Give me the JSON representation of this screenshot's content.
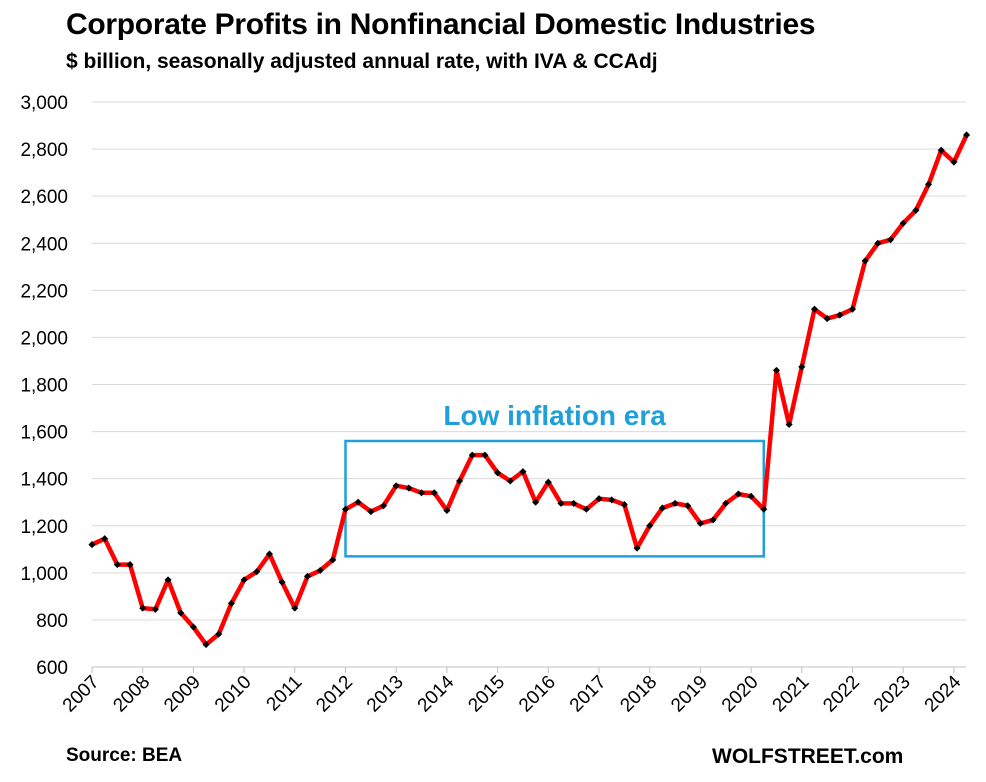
{
  "title": "Corporate Profits in Nonfinancial Domestic Industries",
  "subtitle": "$ billion, seasonally adjusted annual rate, with IVA & CCAdj",
  "source": "Source: BEA",
  "brand": "WOLFSTREET.com",
  "colors": {
    "line": "#FF0000",
    "marker": "#000000",
    "annotation": "#1FA0DA",
    "grid": "#D9D9D9"
  },
  "chart_data": {
    "type": "line",
    "title": "Corporate Profits in Nonfinancial Domestic Industries",
    "ylabel": "$ billion",
    "ylim": [
      600,
      3000
    ],
    "yticks": [
      600,
      800,
      1000,
      1200,
      1400,
      1600,
      1800,
      2000,
      2200,
      2400,
      2600,
      2800,
      3000
    ],
    "ytick_labels": [
      "600",
      "800",
      "1,000",
      "1,200",
      "1,400",
      "1,600",
      "1,800",
      "2,000",
      "2,200",
      "2,400",
      "2,600",
      "2,800",
      "3,000"
    ],
    "xticks": [
      "2007",
      "2008",
      "2009",
      "2010",
      "2011",
      "2012",
      "2013",
      "2014",
      "2015",
      "2016",
      "2017",
      "2018",
      "2019",
      "2020",
      "2021",
      "2022",
      "2023",
      "2024"
    ],
    "grid": "horizontal",
    "x_start": "2007 Q1",
    "frequency": "quarterly",
    "series": [
      {
        "values": [
          1120,
          1145,
          1035,
          1035,
          850,
          845,
          970,
          830,
          770,
          695,
          740,
          870,
          970,
          1005,
          1080,
          960,
          850,
          985,
          1010,
          1055,
          1270,
          1300,
          1260,
          1285,
          1370,
          1360,
          1340,
          1340,
          1265,
          1390,
          1500,
          1500,
          1425,
          1390,
          1430,
          1300,
          1385,
          1295,
          1295,
          1270,
          1315,
          1310,
          1290,
          1105,
          1200,
          1275,
          1295,
          1285,
          1210,
          1225,
          1295,
          1335,
          1325,
          1270,
          1860,
          1630,
          1875,
          2120,
          2080,
          2095,
          2120,
          2325,
          2400,
          2415,
          2485,
          2540,
          2650,
          2795,
          2745,
          2860
        ]
      }
    ],
    "annotations": [
      {
        "text": "Low inflation era",
        "type": "box",
        "x_from": "2012 Q1",
        "x_to": "2020 Q2",
        "y_from": 1070,
        "y_to": 1560
      }
    ]
  }
}
